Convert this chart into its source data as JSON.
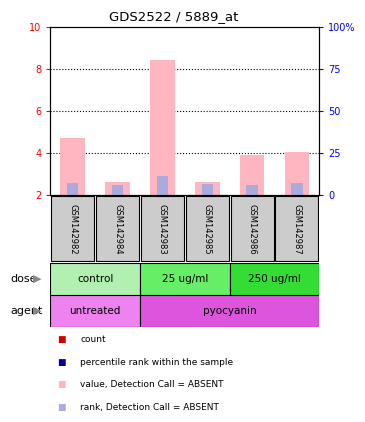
{
  "title": "GDS2522 / 5889_at",
  "samples": [
    "GSM142982",
    "GSM142984",
    "GSM142983",
    "GSM142985",
    "GSM142986",
    "GSM142987"
  ],
  "pink_bars": [
    4.7,
    2.6,
    8.4,
    2.6,
    3.9,
    4.05
  ],
  "blue_bars": [
    2.55,
    2.45,
    2.9,
    2.5,
    2.45,
    2.55
  ],
  "ylim_left": [
    2,
    10
  ],
  "ylim_right": [
    0,
    100
  ],
  "yticks_left": [
    2,
    4,
    6,
    8,
    10
  ],
  "yticks_right": [
    0,
    25,
    50,
    75,
    100
  ],
  "yticklabels_right": [
    "0",
    "25",
    "50",
    "75",
    "100%"
  ],
  "dose_info": [
    [
      0,
      2,
      "control",
      "#b2f0b2"
    ],
    [
      2,
      4,
      "25 ug/ml",
      "#66ee66"
    ],
    [
      4,
      6,
      "250 ug/ml",
      "#33dd33"
    ]
  ],
  "agent_info": [
    [
      0,
      2,
      "untreated",
      "#ee82ee"
    ],
    [
      2,
      6,
      "pyocyanin",
      "#dd55dd"
    ]
  ],
  "pink_color": "#ffb6c1",
  "blue_color": "#aaaadd",
  "legend_items": [
    "count",
    "percentile rank within the sample",
    "value, Detection Call = ABSENT",
    "rank, Detection Call = ABSENT"
  ],
  "legend_colors": [
    "#cc0000",
    "#000099",
    "#ffb6c1",
    "#aaaadd"
  ],
  "sample_box_color": "#cccccc"
}
